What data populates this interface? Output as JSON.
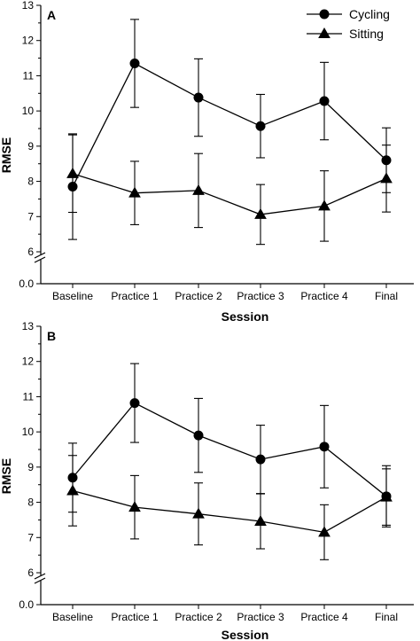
{
  "chart_data": [
    {
      "type": "line",
      "panel_label": "A",
      "xlabel": "Session",
      "ylabel": "RMSE",
      "categories": [
        "Baseline",
        "Practice 1",
        "Practice 2",
        "Practice 3",
        "Practice 4",
        "Final"
      ],
      "y_ticks": [
        "0.0",
        "6",
        "7",
        "8",
        "9",
        "10",
        "11",
        "12",
        "13"
      ],
      "ylim": [
        6,
        13
      ],
      "axis_break": true,
      "series": [
        {
          "name": "Cycling",
          "marker": "circle",
          "values": [
            7.85,
            11.35,
            10.38,
            9.57,
            10.28,
            8.6
          ],
          "error": [
            1.5,
            1.25,
            1.1,
            0.9,
            1.1,
            0.92
          ]
        },
        {
          "name": "Sitting",
          "marker": "triangle",
          "values": [
            8.22,
            7.67,
            7.74,
            7.06,
            7.3,
            8.08
          ],
          "error": [
            1.1,
            0.9,
            1.05,
            0.85,
            1.0,
            0.95
          ]
        }
      ],
      "legend": {
        "position": "top-right",
        "entries": [
          "Cycling",
          "Sitting"
        ]
      }
    },
    {
      "type": "line",
      "panel_label": "B",
      "xlabel": "Session",
      "ylabel": "RMSE",
      "categories": [
        "Baseline",
        "Practice 1",
        "Practice 2",
        "Practice 3",
        "Practice 4",
        "Final"
      ],
      "y_ticks": [
        "0.0",
        "6",
        "7",
        "8",
        "9",
        "10",
        "11",
        "12",
        "13"
      ],
      "ylim": [
        6,
        13
      ],
      "axis_break": true,
      "series": [
        {
          "name": "Cycling",
          "marker": "circle",
          "values": [
            8.7,
            10.82,
            9.9,
            9.22,
            9.58,
            8.17
          ],
          "error": [
            0.98,
            1.12,
            1.05,
            0.97,
            1.17,
            0.87
          ]
        },
        {
          "name": "Sitting",
          "marker": "triangle",
          "values": [
            8.33,
            7.86,
            7.67,
            7.46,
            7.15,
            8.15
          ],
          "error": [
            1.0,
            0.9,
            0.88,
            0.78,
            0.78,
            0.8
          ]
        }
      ]
    }
  ]
}
